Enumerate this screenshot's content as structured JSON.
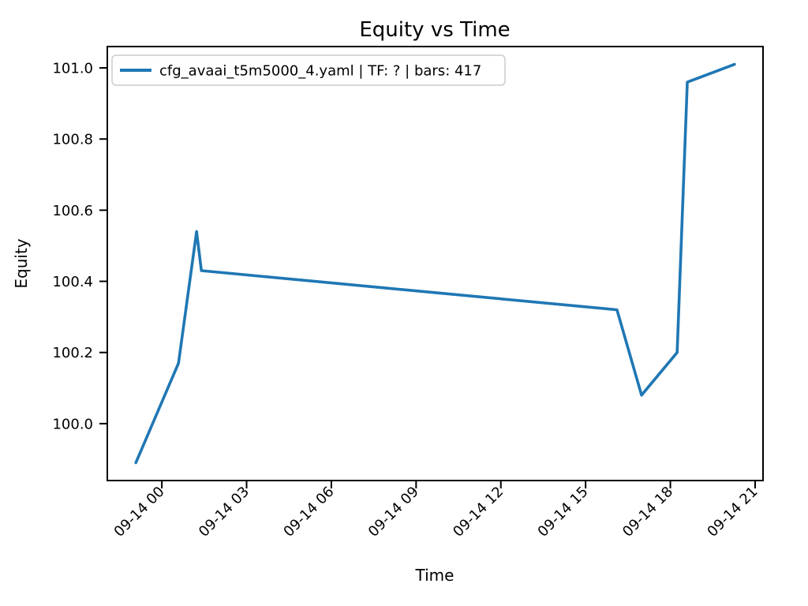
{
  "chart_data": {
    "type": "line",
    "title": "Equity vs Time",
    "xlabel": "Time",
    "ylabel": "Equity",
    "grid": false,
    "legend": {
      "position": "upper-left",
      "label": "cfg_avaai_t5m5000_4.yaml | TF: ? | bars: 417",
      "edge_color": "#cccccc",
      "background": "rgba(255,255,255,0.8)"
    },
    "x_axis": {
      "tick_labels": [
        "09-14 00",
        "09-14 03",
        "09-14 06",
        "09-14 09",
        "09-14 12",
        "09-14 15",
        "09-14 18",
        "09-14 21"
      ],
      "tick_hours": [
        0,
        3,
        6,
        9,
        12,
        15,
        18,
        21
      ],
      "range_hours": [
        -1.93,
        21.28
      ],
      "tick_rotation_deg": 45
    },
    "y_axis": {
      "tick_labels": [
        "100.0",
        "100.2",
        "100.4",
        "100.6",
        "100.8",
        "101.0"
      ],
      "tick_values": [
        100.0,
        100.2,
        100.4,
        100.6,
        100.8,
        101.0
      ],
      "range": [
        99.84,
        101.06
      ]
    },
    "series": [
      {
        "name": "cfg_avaai_t5m5000_4.yaml | TF: ? | bars: 417",
        "color": "#1f77b4",
        "line_width": 3.6,
        "points": [
          {
            "time": "09-13 23:05",
            "hour": -0.92,
            "equity": 99.89
          },
          {
            "time": "09-14 00:35",
            "hour": 0.59,
            "equity": 100.17
          },
          {
            "time": "09-14 01:14",
            "hour": 1.23,
            "equity": 100.54
          },
          {
            "time": "09-14 01:24",
            "hour": 1.4,
            "equity": 100.43
          },
          {
            "time": "09-14 16:07",
            "hour": 16.11,
            "equity": 100.32
          },
          {
            "time": "09-14 17:00",
            "hour": 16.98,
            "equity": 100.08
          },
          {
            "time": "09-14 18:14",
            "hour": 18.24,
            "equity": 100.2
          },
          {
            "time": "09-14 18:36",
            "hour": 18.6,
            "equity": 100.96
          },
          {
            "time": "09-14 20:16",
            "hour": 20.27,
            "equity": 101.01
          }
        ]
      }
    ]
  }
}
